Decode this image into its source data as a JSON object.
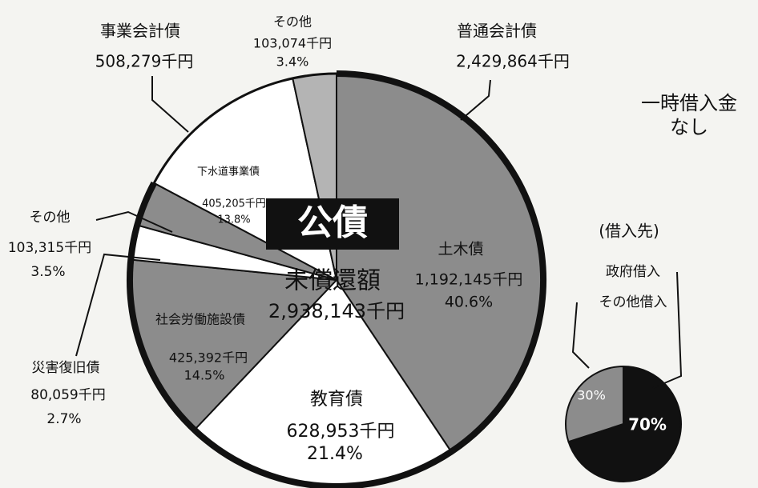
{
  "chart_data": {
    "type": "pie",
    "title": "公債",
    "subtitle": "未償還額",
    "total_label": "2,938,143千円",
    "categories": [
      "土木債",
      "教育債",
      "社会労働施設債",
      "災害復旧債",
      "その他",
      "下水道事業債",
      "その他"
    ],
    "values": [
      40.6,
      21.4,
      14.5,
      2.7,
      3.5,
      13.8,
      3.4
    ],
    "value_labels": [
      "40.6%",
      "21.4%",
      "14.5%",
      "2.7%",
      "3.5%",
      "13.8%",
      "3.4%"
    ],
    "amount_labels": [
      "1,192,145千円",
      "628,953千円",
      "425,392千円",
      "80,059千円",
      "103,315千円",
      "405,205千円",
      "103,074千円"
    ],
    "colors": [
      "#8c8c8c",
      "#ffffff",
      "#8c8c8c",
      "#ffffff",
      "#8c8c8c",
      "#ffffff",
      "#b4b4b4"
    ],
    "groups": [
      {
        "name": "普通会計債",
        "amount_label": "2,429,864千円"
      },
      {
        "name": "事業会計債",
        "amount_label": "508,279千円"
      }
    ],
    "annotations": [
      "一時借入金",
      "なし"
    ],
    "lenders": {
      "title": "(借入先)",
      "categories": [
        "政府借入",
        "その他借入"
      ],
      "values": [
        70,
        30
      ],
      "value_labels": [
        "70%",
        "30%"
      ],
      "colors": [
        "#111111",
        "#8c8c8c"
      ]
    }
  }
}
